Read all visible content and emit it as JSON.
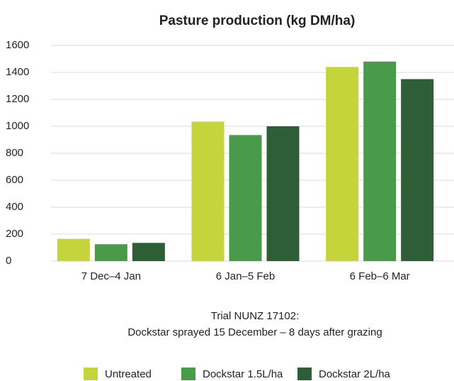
{
  "chart_data": {
    "type": "bar",
    "title": "Pasture production (kg DM/ha)",
    "categories": [
      "7 Dec–4 Jan",
      "6 Jan–5 Feb",
      "6 Feb–6 Mar"
    ],
    "series": [
      {
        "name": "Untreated",
        "color": "#c5d43a",
        "values": [
          165,
          1035,
          1440
        ]
      },
      {
        "name": "Dockstar 1.5L/ha",
        "color": "#4a9a4c",
        "values": [
          125,
          935,
          1480
        ]
      },
      {
        "name": "Dockstar 2L/ha",
        "color": "#2d5e35",
        "values": [
          135,
          1000,
          1350
        ]
      }
    ],
    "ylim": [
      0,
      1600
    ],
    "yticks": [
      0,
      200,
      400,
      600,
      800,
      1000,
      1200,
      1400,
      1600
    ],
    "grid": true,
    "annotations": [
      "Trial NUNZ 17102:",
      "Dockstar sprayed 15 December – 8 days after grazing"
    ],
    "legend": "bottom"
  }
}
